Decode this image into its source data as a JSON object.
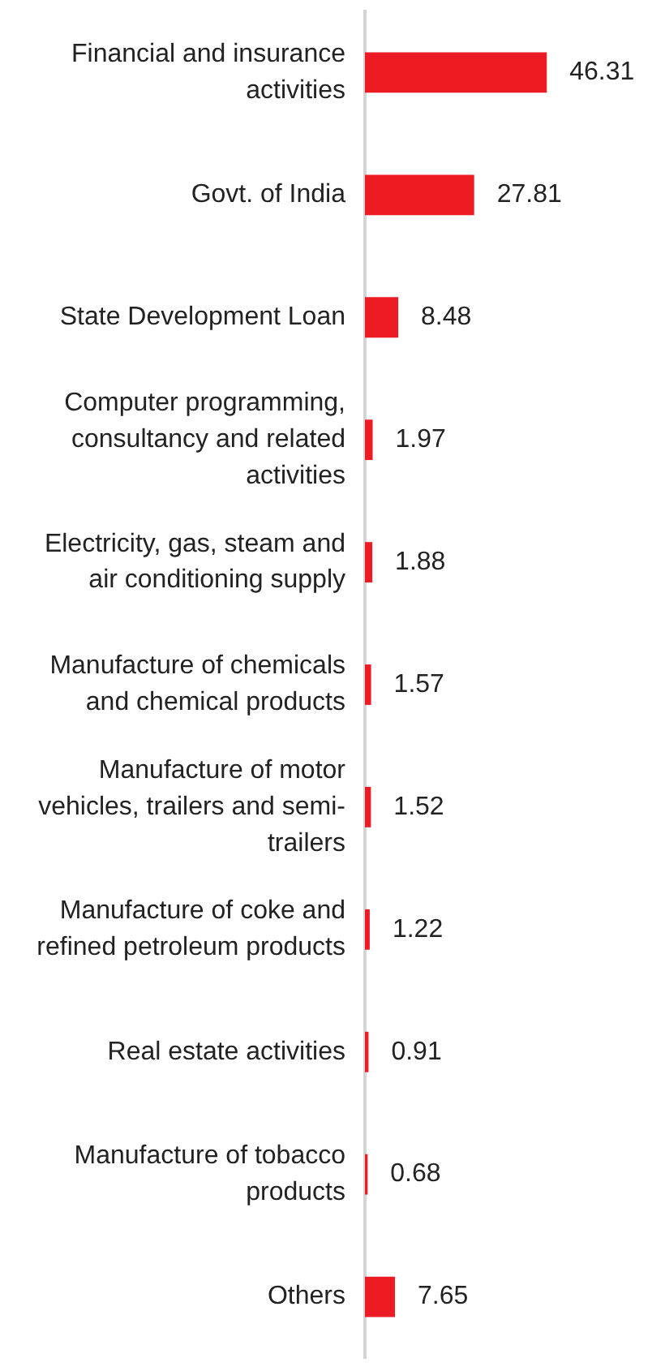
{
  "chart_data": {
    "type": "bar",
    "orientation": "horizontal",
    "categories": [
      "Financial and insurance activities",
      "Govt. of India",
      "State Development Loan",
      "Computer programming, consultancy and related activities",
      "Electricity, gas, steam and air conditioning supply",
      "Manufacture of chemicals and chemical products",
      "Manufacture of motor vehicles, trailers and semi-trailers",
      "Manufacture of coke and refined petroleum products",
      "Real estate activities",
      "Manufacture of tobacco products",
      "Others"
    ],
    "values": [
      46.31,
      27.81,
      8.48,
      1.97,
      1.88,
      1.57,
      1.52,
      1.22,
      0.91,
      0.68,
      7.65
    ],
    "color": "#ed1c24",
    "data_labels": true,
    "grid": false,
    "legend": false
  }
}
